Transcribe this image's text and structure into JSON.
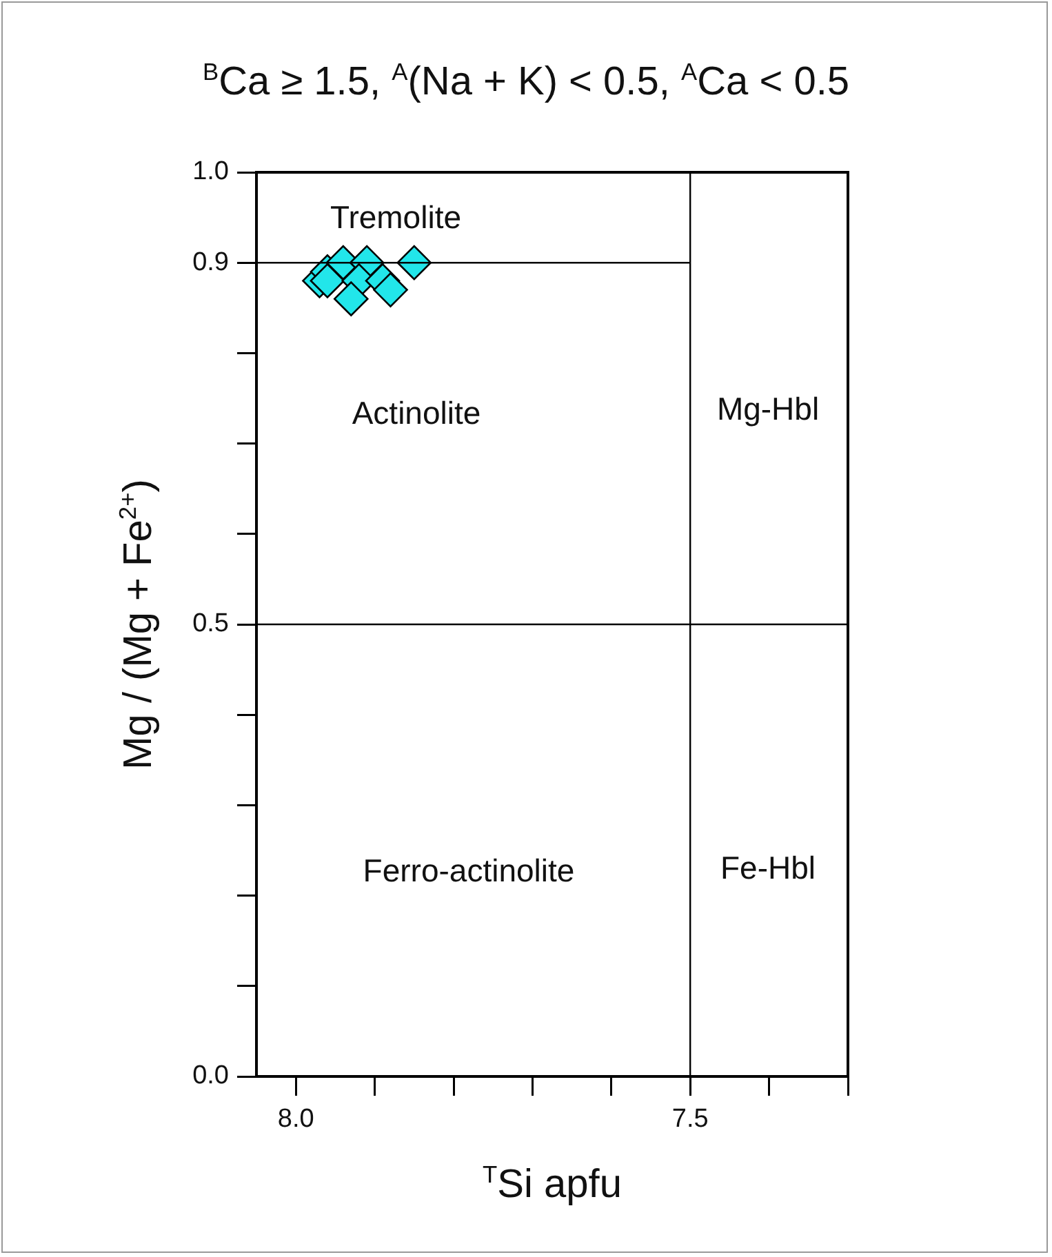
{
  "chart_data": {
    "type": "scatter",
    "title": "$^{B}$Ca ≥ 1.5, $^{A}$(Na + K) < 0.5, $^{A}$Ca < 0.5",
    "xlabel": "$^{T}$Si apfu",
    "ylabel": "Mg / (Mg + Fe$^{2+}$)",
    "xlim": [
      8.05,
      7.3
    ],
    "ylim": [
      0,
      1
    ],
    "xticks": [
      {
        "value": 8,
        "label": "8.0"
      },
      {
        "value": 7.9,
        "label": null
      },
      {
        "value": 7.8,
        "label": null
      },
      {
        "value": 7.7,
        "label": null
      },
      {
        "value": 7.6,
        "label": null
      },
      7.5,
      {
        "value": 7.4,
        "label": null
      },
      {
        "value": 7.3,
        "label": null
      }
    ],
    "yticks": [
      {
        "value": 0,
        "label": "0.0"
      },
      {
        "value": 0.1,
        "label": null
      },
      {
        "value": 0.2,
        "label": null
      },
      {
        "value": 0.3,
        "label": null
      },
      {
        "value": 0.4,
        "label": null
      },
      0.5,
      {
        "value": 0.6,
        "label": null
      },
      {
        "value": 0.7,
        "label": null
      },
      {
        "value": 0.8,
        "label": null
      },
      0.9,
      {
        "value": 1,
        "label": "1.0"
      }
    ],
    "grid": false,
    "legend": false,
    "marker": "diamond",
    "series": [
      {
        "type": "line",
        "color": "#000000",
        "marker": "none",
        "x": [
          8.05,
          7.5
        ],
        "values": [
          0.9,
          0.9
        ]
      },
      {
        "color": "#22e6ea",
        "x": [
          7.97,
          7.96,
          7.96,
          7.94,
          7.91,
          7.92,
          7.93,
          7.89,
          7.88,
          7.85
        ],
        "values": [
          0.88,
          0.89,
          0.88,
          0.9,
          0.9,
          0.88,
          0.86,
          0.88,
          0.87,
          0.9
        ]
      }
    ],
    "ref_lines": [
      {
        "axis": "y",
        "value": 0.5,
        "label": null,
        "color": "#000000"
      },
      {
        "axis": "x",
        "value": 7.5,
        "label": null,
        "color": "#000000"
      }
    ],
    "annotations": [
      "Tremolite",
      "Actinolite",
      "Mg-Hbl",
      "Ferro-actinolite",
      "Fe-Hbl"
    ]
  }
}
